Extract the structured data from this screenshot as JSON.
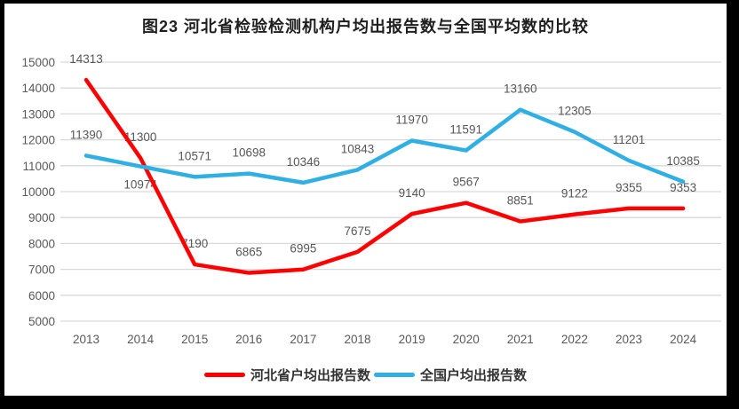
{
  "chart_data": {
    "type": "line",
    "title": "图23  河北省检验检测机构户均出报告数与全国平均数的比较",
    "categories": [
      "2013",
      "2014",
      "2015",
      "2016",
      "2017",
      "2018",
      "2019",
      "2020",
      "2021",
      "2022",
      "2023",
      "2024"
    ],
    "series": [
      {
        "name": "河北省户均出报告数",
        "color": "#fe0000",
        "values": [
          14313,
          11300,
          7190,
          6865,
          6995,
          7675,
          9140,
          9567,
          8851,
          9122,
          9355,
          9353
        ]
      },
      {
        "name": "全国户均出报告数",
        "color": "#2fafe3",
        "values": [
          11390,
          10974,
          10571,
          10698,
          10346,
          10843,
          11970,
          11591,
          13160,
          12305,
          11201,
          10385
        ]
      }
    ],
    "xlabel": "",
    "ylabel": "",
    "ylim": [
      5000,
      15000
    ],
    "ytick_step": 1000,
    "grid": "horizontal",
    "legend_position": "bottom",
    "grid_color": "#d9d9d9",
    "axis_text_color": "#595959",
    "data_label_color": "#575757"
  }
}
